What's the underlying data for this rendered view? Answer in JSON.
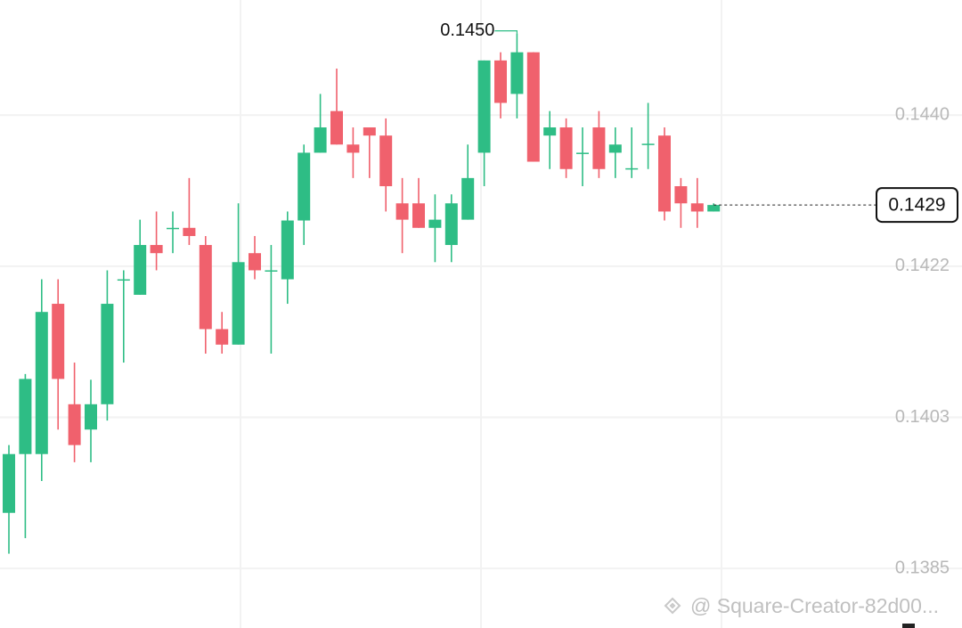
{
  "chart_data": {
    "type": "candlestick",
    "up_color": "#2ebd85",
    "down_color": "#f0616d",
    "open": [
      0.13913,
      0.13985,
      0.13985,
      0.14169,
      0.14046,
      0.14015,
      0.14046,
      0.14198,
      0.1418,
      0.14241,
      0.14261,
      0.14262,
      0.14241,
      0.14138,
      0.14119,
      0.14231,
      0.14209,
      0.14199,
      0.14271,
      0.14354,
      0.14405,
      0.14364,
      0.14385,
      0.14375,
      0.14292,
      0.14292,
      0.14262,
      0.14241,
      0.14272,
      0.14354,
      0.14467,
      0.14426,
      0.14477,
      0.14375,
      0.14385,
      0.14353,
      0.14385,
      0.14354,
      0.14334,
      0.14364,
      0.14375,
      0.14313,
      0.14292,
      0.14282
    ],
    "high": [
      0.13996,
      0.14083,
      0.14199,
      0.14199,
      0.14097,
      0.14076,
      0.1421,
      0.1421,
      0.14272,
      0.14282,
      0.14282,
      0.14323,
      0.14252,
      0.14159,
      0.14292,
      0.14252,
      0.14241,
      0.14282,
      0.14364,
      0.14426,
      0.14457,
      0.14385,
      0.14385,
      0.14396,
      0.14323,
      0.14323,
      0.14303,
      0.14303,
      0.14364,
      0.14467,
      0.14477,
      0.145,
      0.14477,
      0.14405,
      0.14396,
      0.14385,
      0.14405,
      0.14385,
      0.14385,
      0.14415,
      0.14385,
      0.14323,
      0.14323,
      0.14292
    ],
    "low": [
      0.13863,
      0.13882,
      0.13952,
      0.14015,
      0.13975,
      0.13975,
      0.14026,
      0.14097,
      0.1418,
      0.1421,
      0.14231,
      0.14241,
      0.14108,
      0.14108,
      0.14119,
      0.14199,
      0.14108,
      0.14169,
      0.14241,
      0.14354,
      0.14364,
      0.14323,
      0.14323,
      0.14282,
      0.14231,
      0.14262,
      0.1422,
      0.1422,
      0.14272,
      0.14313,
      0.14396,
      0.14396,
      0.14343,
      0.14334,
      0.14323,
      0.14313,
      0.14323,
      0.14323,
      0.14323,
      0.14334,
      0.14271,
      0.14262,
      0.14262,
      0.14282
    ],
    "close": [
      0.13985,
      0.14077,
      0.14159,
      0.14077,
      0.13996,
      0.14046,
      0.14169,
      0.14199,
      0.14241,
      0.14231,
      0.14262,
      0.14252,
      0.14138,
      0.14119,
      0.1422,
      0.1421,
      0.1421,
      0.14271,
      0.14354,
      0.14385,
      0.14364,
      0.14354,
      0.14375,
      0.14313,
      0.14272,
      0.14262,
      0.14272,
      0.14292,
      0.14323,
      0.14467,
      0.14415,
      0.14477,
      0.14343,
      0.14385,
      0.14334,
      0.14354,
      0.14334,
      0.14364,
      0.14335,
      0.14365,
      0.14282,
      0.14292,
      0.14282,
      0.1429
    ],
    "ylim": [
      0.13772,
      0.14541
    ],
    "yticks": [
      {
        "value": 0.144,
        "label": "0.1440"
      },
      {
        "value": 0.14215,
        "label": "0.1422"
      },
      {
        "value": 0.1403,
        "label": "0.1403"
      },
      {
        "value": 0.13845,
        "label": "0.1385"
      }
    ],
    "grid": true,
    "annotations": [
      {
        "text": "0.1450"
      }
    ],
    "watermark": "@ Square-Creator-82d00..."
  }
}
